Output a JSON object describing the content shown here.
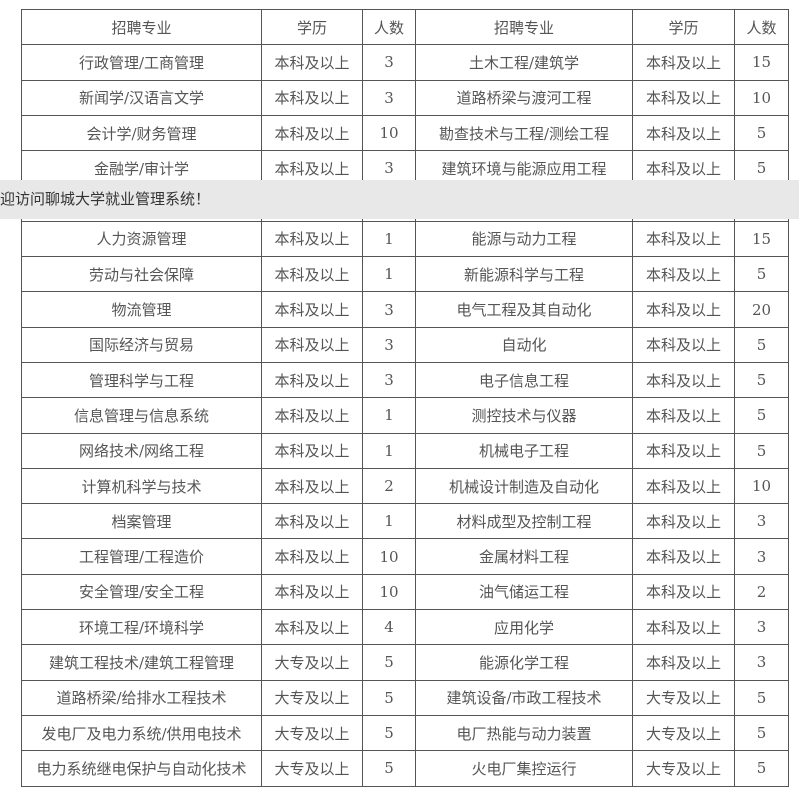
{
  "banner": {
    "text": "迎访问聊城大学就业管理系统！"
  },
  "table": {
    "headers": [
      "招聘专业",
      "学历",
      "人数",
      "招聘专业",
      "学历",
      "人数"
    ],
    "rows_top": [
      [
        "行政管理/工商管理",
        "本科及以上",
        "3",
        "土木工程/建筑学",
        "本科及以上",
        "15"
      ],
      [
        "新闻学/汉语言文学",
        "本科及以上",
        "3",
        "道路桥梁与渡河工程",
        "本科及以上",
        "10"
      ],
      [
        "会计学/财务管理",
        "本科及以上",
        "10",
        "勘查技术与工程/测绘工程",
        "本科及以上",
        "5"
      ],
      [
        "金融学/审计学",
        "本科及以上",
        "3",
        "建筑环境与能源应用工程",
        "本科及以上",
        "5"
      ]
    ],
    "rows_bottom": [
      [
        "人力资源管理",
        "本科及以上",
        "1",
        "能源与动力工程",
        "本科及以上",
        "15"
      ],
      [
        "劳动与社会保障",
        "本科及以上",
        "1",
        "新能源科学与工程",
        "本科及以上",
        "5"
      ],
      [
        "物流管理",
        "本科及以上",
        "3",
        "电气工程及其自动化",
        "本科及以上",
        "20"
      ],
      [
        "国际经济与贸易",
        "本科及以上",
        "3",
        "自动化",
        "本科及以上",
        "5"
      ],
      [
        "管理科学与工程",
        "本科及以上",
        "3",
        "电子信息工程",
        "本科及以上",
        "5"
      ],
      [
        "信息管理与信息系统",
        "本科及以上",
        "1",
        "测控技术与仪器",
        "本科及以上",
        "5"
      ],
      [
        "网络技术/网络工程",
        "本科及以上",
        "1",
        "机械电子工程",
        "本科及以上",
        "5"
      ],
      [
        "计算机科学与技术",
        "本科及以上",
        "2",
        "机械设计制造及自动化",
        "本科及以上",
        "10"
      ],
      [
        "档案管理",
        "本科及以上",
        "1",
        "材料成型及控制工程",
        "本科及以上",
        "3"
      ],
      [
        "工程管理/工程造价",
        "本科及以上",
        "10",
        "金属材料工程",
        "本科及以上",
        "3"
      ],
      [
        "安全管理/安全工程",
        "本科及以上",
        "10",
        "油气储运工程",
        "本科及以上",
        "2"
      ],
      [
        "环境工程/环境科学",
        "本科及以上",
        "4",
        "应用化学",
        "本科及以上",
        "3"
      ],
      [
        "建筑工程技术/建筑工程管理",
        "大专及以上",
        "5",
        "能源化学工程",
        "本科及以上",
        "3"
      ],
      [
        "道路桥梁/给排水工程技术",
        "大专及以上",
        "5",
        "建筑设备/市政工程技术",
        "大专及以上",
        "5"
      ],
      [
        "发电厂及电力系统/供用电技术",
        "大专及以上",
        "5",
        "电厂热能与动力装置",
        "大专及以上",
        "5"
      ],
      [
        "电力系统继电保护与自动化技术",
        "大专及以上",
        "5",
        "火电厂集控运行",
        "大专及以上",
        "5"
      ]
    ]
  }
}
